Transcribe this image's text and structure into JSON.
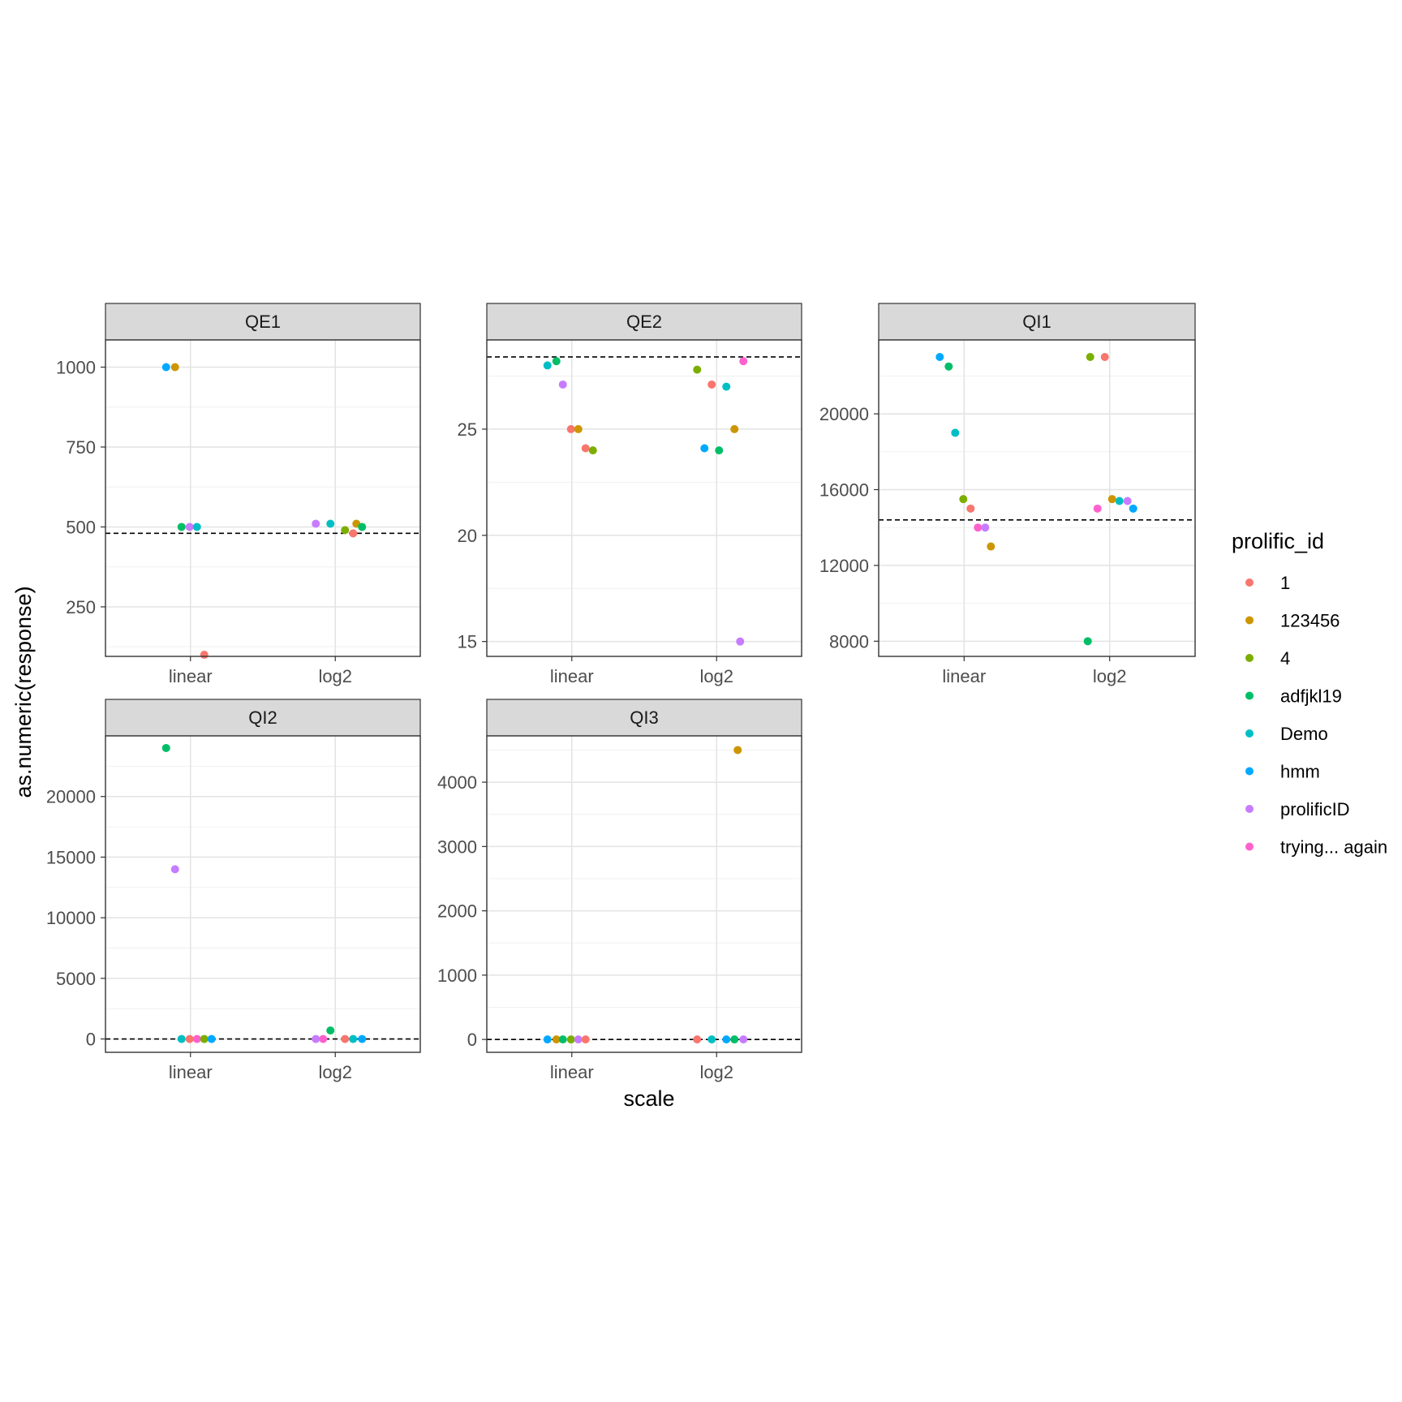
{
  "chart_data": {
    "type": "scatter",
    "xlabel": "scale",
    "ylabel": "as.numeric(response)",
    "categories": [
      "linear",
      "log2"
    ],
    "grid": true,
    "legend": {
      "title": "prolific_id",
      "placement": "right",
      "entries": [
        {
          "label": "1",
          "color": "#F8766D"
        },
        {
          "label": "123456",
          "color": "#CD9600"
        },
        {
          "label": "4",
          "color": "#7CAE00"
        },
        {
          "label": "adfjkl19",
          "color": "#00BE67"
        },
        {
          "label": "Demo",
          "color": "#00BFC4"
        },
        {
          "label": "hmm",
          "color": "#00A9FF"
        },
        {
          "label": "prolificID",
          "color": "#C77CFF"
        },
        {
          "label": "trying... again",
          "color": "#FF61CC"
        }
      ]
    },
    "panels": [
      {
        "title": "QE1",
        "ylim": [
          95,
          1085
        ],
        "yticks": [
          250,
          500,
          750,
          1000
        ],
        "hline": 480,
        "points": [
          {
            "x": "linear",
            "y": 1000,
            "id": "hmm"
          },
          {
            "x": "linear",
            "y": 1000,
            "id": "123456"
          },
          {
            "x": "linear",
            "y": 500,
            "id": "adfjkl19"
          },
          {
            "x": "linear",
            "y": 500,
            "id": "prolificID"
          },
          {
            "x": "linear",
            "y": 500,
            "id": "Demo"
          },
          {
            "x": "linear",
            "y": 100,
            "id": "1"
          },
          {
            "x": "log2",
            "y": 510,
            "id": "123456"
          },
          {
            "x": "log2",
            "y": 500,
            "id": "adfjkl19"
          },
          {
            "x": "log2",
            "y": 510,
            "id": "prolificID"
          },
          {
            "x": "log2",
            "y": 510,
            "id": "Demo"
          },
          {
            "x": "log2",
            "y": 490,
            "id": "4"
          },
          {
            "x": "log2",
            "y": 480,
            "id": "1"
          }
        ]
      },
      {
        "title": "QE2",
        "ylim": [
          14.3,
          29.2
        ],
        "yticks": [
          15,
          20,
          25
        ],
        "hline": 28.4,
        "points": [
          {
            "x": "linear",
            "y": 28.0,
            "id": "Demo"
          },
          {
            "x": "linear",
            "y": 28.2,
            "id": "adfjkl19"
          },
          {
            "x": "linear",
            "y": 27.1,
            "id": "prolificID"
          },
          {
            "x": "linear",
            "y": 25.0,
            "id": "1"
          },
          {
            "x": "linear",
            "y": 25.0,
            "id": "123456"
          },
          {
            "x": "linear",
            "y": 24.1,
            "id": "1"
          },
          {
            "x": "linear",
            "y": 24.0,
            "id": "4"
          },
          {
            "x": "log2",
            "y": 28.2,
            "id": "trying... again"
          },
          {
            "x": "log2",
            "y": 27.8,
            "id": "4"
          },
          {
            "x": "log2",
            "y": 27.1,
            "id": "1"
          },
          {
            "x": "log2",
            "y": 27.0,
            "id": "Demo"
          },
          {
            "x": "log2",
            "y": 25.0,
            "id": "123456"
          },
          {
            "x": "log2",
            "y": 24.1,
            "id": "hmm"
          },
          {
            "x": "log2",
            "y": 24.0,
            "id": "adfjkl19"
          },
          {
            "x": "log2",
            "y": 15.0,
            "id": "prolificID"
          }
        ]
      },
      {
        "title": "QI1",
        "ylim": [
          7200,
          23900
        ],
        "yticks": [
          8000,
          12000,
          16000,
          20000
        ],
        "hline": 14400,
        "points": [
          {
            "x": "linear",
            "y": 23000,
            "id": "hmm"
          },
          {
            "x": "linear",
            "y": 22500,
            "id": "adfjkl19"
          },
          {
            "x": "linear",
            "y": 19000,
            "id": "Demo"
          },
          {
            "x": "linear",
            "y": 15500,
            "id": "4"
          },
          {
            "x": "linear",
            "y": 15000,
            "id": "1"
          },
          {
            "x": "linear",
            "y": 14000,
            "id": "trying... again"
          },
          {
            "x": "linear",
            "y": 14000,
            "id": "prolificID"
          },
          {
            "x": "linear",
            "y": 13000,
            "id": "123456"
          },
          {
            "x": "log2",
            "y": 23000,
            "id": "4"
          },
          {
            "x": "log2",
            "y": 23000,
            "id": "1"
          },
          {
            "x": "log2",
            "y": 15400,
            "id": "Demo"
          },
          {
            "x": "log2",
            "y": 15400,
            "id": "prolificID"
          },
          {
            "x": "log2",
            "y": 15000,
            "id": "trying... again"
          },
          {
            "x": "log2",
            "y": 15500,
            "id": "123456"
          },
          {
            "x": "log2",
            "y": 15000,
            "id": "hmm"
          },
          {
            "x": "log2",
            "y": 8000,
            "id": "adfjkl19"
          }
        ]
      },
      {
        "title": "QI2",
        "ylim": [
          -1100,
          25000
        ],
        "yticks": [
          0,
          5000,
          10000,
          15000,
          20000
        ],
        "hline": 0,
        "points": [
          {
            "x": "linear",
            "y": 24000,
            "id": "adfjkl19"
          },
          {
            "x": "linear",
            "y": 14000,
            "id": "prolificID"
          },
          {
            "x": "linear",
            "y": 0,
            "id": "Demo"
          },
          {
            "x": "linear",
            "y": 0,
            "id": "1"
          },
          {
            "x": "linear",
            "y": 0,
            "id": "trying... again"
          },
          {
            "x": "linear",
            "y": 0,
            "id": "4"
          },
          {
            "x": "linear",
            "y": 0,
            "id": "hmm"
          },
          {
            "x": "log2",
            "y": 0,
            "id": "hmm"
          },
          {
            "x": "log2",
            "y": 0,
            "id": "prolificID"
          },
          {
            "x": "log2",
            "y": 700,
            "id": "adfjkl19"
          },
          {
            "x": "log2",
            "y": 0,
            "id": "1"
          },
          {
            "x": "log2",
            "y": 0,
            "id": "Demo"
          },
          {
            "x": "log2",
            "y": 0,
            "id": "trying... again"
          }
        ]
      },
      {
        "title": "QI3",
        "ylim": [
          -200,
          4720
        ],
        "yticks": [
          0,
          1000,
          2000,
          3000,
          4000
        ],
        "hline": 0,
        "points": [
          {
            "x": "linear",
            "y": 0,
            "id": "hmm"
          },
          {
            "x": "linear",
            "y": 0,
            "id": "123456"
          },
          {
            "x": "linear",
            "y": 0,
            "id": "adfjkl19"
          },
          {
            "x": "linear",
            "y": 0,
            "id": "4"
          },
          {
            "x": "linear",
            "y": 0,
            "id": "prolificID"
          },
          {
            "x": "linear",
            "y": 0,
            "id": "1"
          },
          {
            "x": "log2",
            "y": 4500,
            "id": "123456"
          },
          {
            "x": "log2",
            "y": 0,
            "id": "prolificID"
          },
          {
            "x": "log2",
            "y": 0,
            "id": "1"
          },
          {
            "x": "log2",
            "y": 0,
            "id": "Demo"
          },
          {
            "x": "log2",
            "y": 0,
            "id": "hmm"
          },
          {
            "x": "log2",
            "y": 0,
            "id": "adfjkl19"
          }
        ]
      }
    ]
  }
}
